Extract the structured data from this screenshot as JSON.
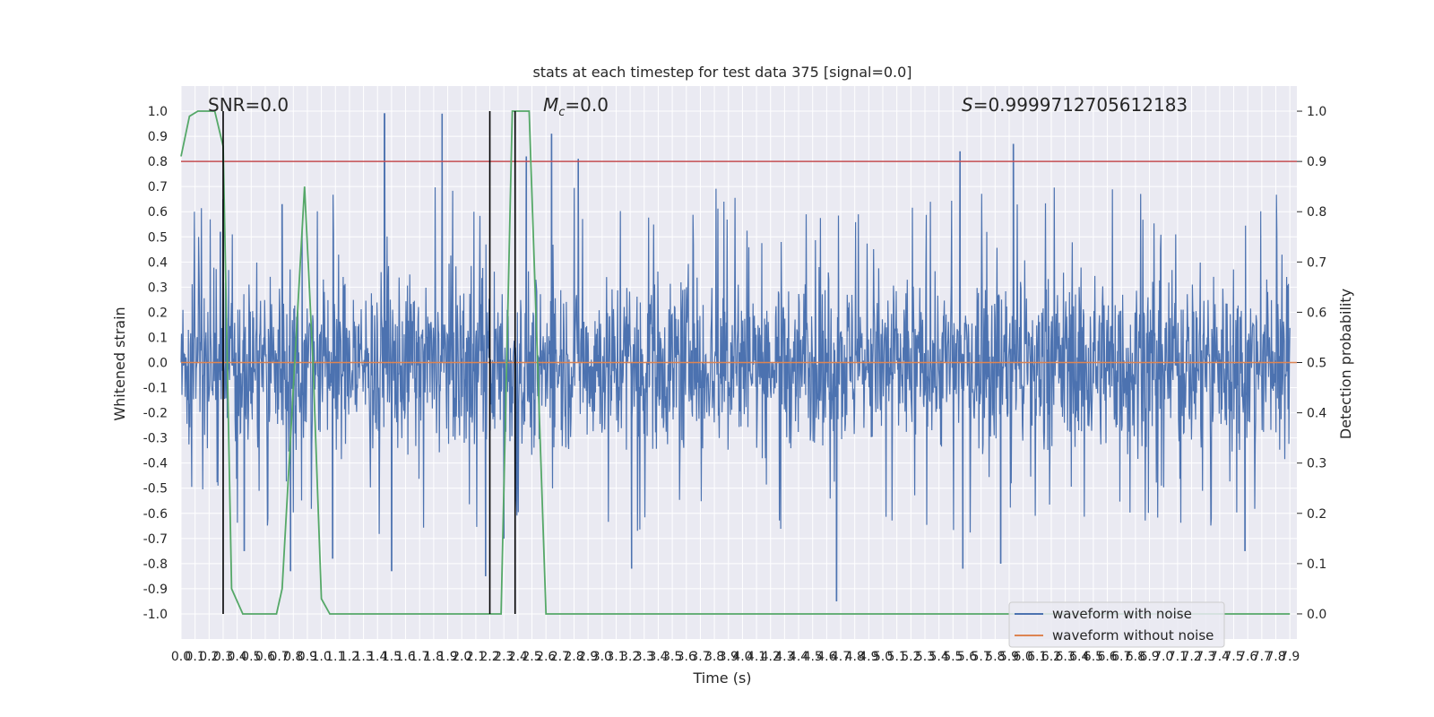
{
  "chart_data": {
    "type": "line",
    "title": "stats at each timestep for test data 375 [signal=0.0]",
    "xlabel": "Time (s)",
    "ylabel": "Whitened strain",
    "ylabel_right": "Detection probability",
    "xlim": [
      0.0,
      7.95
    ],
    "ylim": [
      -1.1,
      1.1
    ],
    "ylim_right": [
      -0.05,
      1.05
    ],
    "x_ticks": [
      "0.0",
      "0.1",
      "0.2",
      "0.3",
      "0.4",
      "0.5",
      "0.6",
      "0.7",
      "0.8",
      "0.9",
      "1.0",
      "1.1",
      "1.2",
      "1.3",
      "1.4",
      "1.5",
      "1.6",
      "1.7",
      "1.8",
      "1.9",
      "2.0",
      "2.1",
      "2.2",
      "2.3",
      "2.4",
      "2.5",
      "2.6",
      "2.7",
      "2.8",
      "2.9",
      "3.0",
      "3.1",
      "3.2",
      "3.3",
      "3.4",
      "3.5",
      "3.6",
      "3.7",
      "3.8",
      "3.9",
      "4.0",
      "4.1",
      "4.2",
      "4.3",
      "4.4",
      "4.5",
      "4.6",
      "4.7",
      "4.8",
      "4.9",
      "5.0",
      "5.1",
      "5.2",
      "5.3",
      "5.4",
      "5.5",
      "5.6",
      "5.7",
      "5.8",
      "5.9",
      "6.0",
      "6.1",
      "6.2",
      "6.3",
      "6.4",
      "6.5",
      "6.6",
      "6.7",
      "6.8",
      "6.9",
      "7.0",
      "7.1",
      "7.2",
      "7.3",
      "7.4",
      "7.5",
      "7.6",
      "7.7",
      "7.8",
      "7.9"
    ],
    "y_ticks_left": [
      "1.0",
      "0.9",
      "0.8",
      "0.7",
      "0.6",
      "0.5",
      "0.4",
      "0.3",
      "0.2",
      "0.1",
      "0.0",
      "-0.1",
      "-0.2",
      "-0.3",
      "-0.4",
      "-0.5",
      "-0.6",
      "-0.7",
      "-0.8",
      "-0.9",
      "-1.0"
    ],
    "y_ticks_right": [
      "1.0",
      "0.9",
      "0.8",
      "0.7",
      "0.6",
      "0.5",
      "0.4",
      "0.3",
      "0.2",
      "0.1",
      "0.0"
    ],
    "annotations": {
      "snr": "SNR=0.0",
      "mc_symbol": "M",
      "mc_sub": "c",
      "mc_value": "=0.0",
      "s_symbol": "S",
      "s_value": "=0.9999712705612183"
    },
    "legend": {
      "position": "lower-right",
      "entries": [
        {
          "label": "waveform with noise",
          "color": "#4c72b0"
        },
        {
          "label": "waveform without noise",
          "color": "#dd8452"
        }
      ]
    },
    "series": [
      {
        "name": "waveform with noise",
        "color": "#4c72b0",
        "axis": "left",
        "style": "dense noise",
        "envelope": {
          "positive": 0.4,
          "negative": -0.35
        },
        "peaks": [
          {
            "x": 0.28,
            "y": 0.52
          },
          {
            "x": 0.3,
            "y": 0.65
          },
          {
            "x": 0.45,
            "y": -0.75
          },
          {
            "x": 0.72,
            "y": 0.63
          },
          {
            "x": 0.78,
            "y": -0.83
          },
          {
            "x": 1.08,
            "y": -0.78
          },
          {
            "x": 1.45,
            "y": 0.99
          },
          {
            "x": 1.5,
            "y": -0.83
          },
          {
            "x": 1.86,
            "y": 0.99
          },
          {
            "x": 2.17,
            "y": -0.85
          },
          {
            "x": 2.3,
            "y": -0.7
          },
          {
            "x": 2.46,
            "y": 0.82
          },
          {
            "x": 2.64,
            "y": 0.91
          },
          {
            "x": 2.83,
            "y": 0.81
          },
          {
            "x": 3.21,
            "y": -0.82
          },
          {
            "x": 4.67,
            "y": -0.95
          },
          {
            "x": 5.55,
            "y": 0.84
          },
          {
            "x": 5.57,
            "y": -0.82
          },
          {
            "x": 5.93,
            "y": 0.87
          },
          {
            "x": 5.84,
            "y": -0.8
          },
          {
            "x": 7.58,
            "y": -0.75
          }
        ]
      },
      {
        "name": "waveform without noise",
        "color": "#dd8452",
        "axis": "left",
        "x": [
          0.0,
          7.95
        ],
        "values": [
          0.0,
          0.0
        ]
      },
      {
        "color": "#55a868",
        "axis": "right",
        "x": [
          0.0,
          0.06,
          0.12,
          0.18,
          0.24,
          0.3,
          0.36,
          0.44,
          0.58,
          0.68,
          0.72,
          0.88,
          0.94,
          1.0,
          1.06,
          1.4,
          2.2,
          2.24,
          2.28,
          2.36,
          2.4,
          2.44,
          2.48,
          2.54,
          2.6,
          3.0,
          7.9
        ],
        "values": [
          0.91,
          0.99,
          1.0,
          1.0,
          1.0,
          0.93,
          0.05,
          0.0,
          0.0,
          0.0,
          0.05,
          0.85,
          0.5,
          0.03,
          0.0,
          0.0,
          0.0,
          0.0,
          0.0,
          1.0,
          1.0,
          1.0,
          1.0,
          0.5,
          0.0,
          0.0,
          0.0
        ]
      }
    ],
    "hlines": [
      {
        "axis": "right",
        "y": 0.9,
        "color": "#c44e52"
      }
    ],
    "vlines": [
      {
        "x": 0.3,
        "color": "#000000"
      },
      {
        "x": 2.2,
        "color": "#000000"
      },
      {
        "x": 2.38,
        "color": "#000000"
      }
    ],
    "grid": true
  }
}
